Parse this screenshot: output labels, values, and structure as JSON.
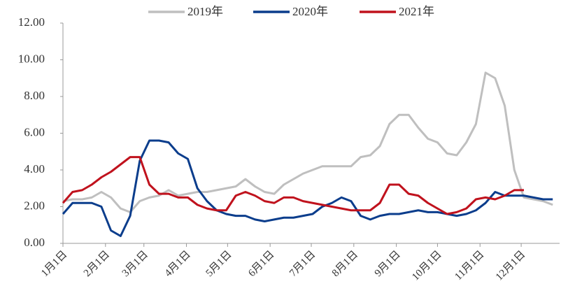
{
  "chart_data": {
    "type": "line",
    "x": [
      0,
      7,
      14,
      21,
      28,
      35,
      42,
      49,
      56,
      63,
      70,
      77,
      84,
      91,
      98,
      105,
      112,
      119,
      126,
      133,
      140,
      147,
      154,
      161,
      168,
      175,
      182,
      189,
      196,
      203,
      210,
      217,
      224,
      231,
      238,
      245,
      252,
      259,
      266,
      273,
      280,
      287,
      294,
      301,
      308,
      315,
      322,
      329,
      336,
      343,
      350,
      357
    ],
    "xlim": [
      0,
      362
    ],
    "xticks": [
      {
        "value": 0,
        "label": "1月1日"
      },
      {
        "value": 31,
        "label": "2月1日"
      },
      {
        "value": 59,
        "label": "3月1日"
      },
      {
        "value": 90,
        "label": "4月1日"
      },
      {
        "value": 120,
        "label": "5月1日"
      },
      {
        "value": 151,
        "label": "6月1日"
      },
      {
        "value": 181,
        "label": "7月1日"
      },
      {
        "value": 212,
        "label": "8月1日"
      },
      {
        "value": 243,
        "label": "9月1日"
      },
      {
        "value": 273,
        "label": "10月1日"
      },
      {
        "value": 304,
        "label": "11月1日"
      },
      {
        "value": 334,
        "label": "12月1日"
      }
    ],
    "ylim": [
      0,
      12
    ],
    "yticks": [
      {
        "value": 0,
        "label": "0.00"
      },
      {
        "value": 2,
        "label": "2.00"
      },
      {
        "value": 4,
        "label": "4.00"
      },
      {
        "value": 6,
        "label": "6.00"
      },
      {
        "value": 8,
        "label": "8.00"
      },
      {
        "value": 10,
        "label": "10.00"
      },
      {
        "value": 12,
        "label": "12.00"
      }
    ],
    "series": [
      {
        "name": "2019年",
        "color": "#bfbfbf",
        "values": [
          2.3,
          2.4,
          2.4,
          2.5,
          2.8,
          2.5,
          1.9,
          1.7,
          2.3,
          2.5,
          2.6,
          2.9,
          2.6,
          2.7,
          2.8,
          2.8,
          2.9,
          3.0,
          3.1,
          3.5,
          3.1,
          2.8,
          2.7,
          3.2,
          3.5,
          3.8,
          4.0,
          4.2,
          4.2,
          4.2,
          4.2,
          4.7,
          4.8,
          5.3,
          6.5,
          7.0,
          7.0,
          6.3,
          5.7,
          5.5,
          4.9,
          4.8,
          5.5,
          6.5,
          9.3,
          9.0,
          7.5,
          4.0,
          2.5,
          2.4,
          2.3,
          2.1
        ]
      },
      {
        "name": "2020年",
        "color": "#0b3d8c",
        "values": [
          1.6,
          2.2,
          2.2,
          2.2,
          2.0,
          0.7,
          0.4,
          1.5,
          4.5,
          5.6,
          5.6,
          5.5,
          4.9,
          4.6,
          3.0,
          2.3,
          1.8,
          1.6,
          1.5,
          1.5,
          1.3,
          1.2,
          1.3,
          1.4,
          1.4,
          1.5,
          1.6,
          2.0,
          2.2,
          2.5,
          2.3,
          1.5,
          1.3,
          1.5,
          1.6,
          1.6,
          1.7,
          1.8,
          1.7,
          1.7,
          1.6,
          1.5,
          1.6,
          1.8,
          2.2,
          2.8,
          2.6,
          2.6,
          2.6,
          2.5,
          2.4,
          2.4
        ]
      },
      {
        "name": "2021年",
        "color": "#c0121d",
        "values": [
          2.2,
          2.8,
          2.9,
          3.2,
          3.6,
          3.9,
          4.3,
          4.7,
          4.7,
          3.2,
          2.7,
          2.7,
          2.5,
          2.5,
          2.1,
          1.9,
          1.8,
          1.8,
          2.6,
          2.8,
          2.6,
          2.3,
          2.2,
          2.5,
          2.5,
          2.3,
          2.2,
          2.1,
          2.0,
          1.9,
          1.8,
          1.8,
          1.8,
          2.2,
          3.2,
          3.2,
          2.7,
          2.6,
          2.2,
          1.9,
          1.6,
          1.7,
          1.9,
          2.4,
          2.5,
          2.4,
          2.6,
          2.9,
          2.9,
          null,
          null,
          null
        ]
      }
    ]
  }
}
